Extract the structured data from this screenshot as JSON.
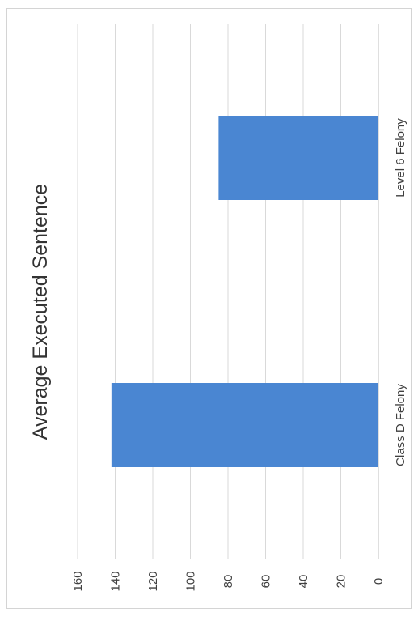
{
  "chart_data": {
    "type": "bar",
    "title": "Average Executed Sentence",
    "categories": [
      "Class D Felony",
      "Level 6 Felony"
    ],
    "series": [
      {
        "values": [
          142,
          85
        ]
      }
    ],
    "ylim": [
      0,
      160
    ],
    "yticks": [
      0,
      20,
      40,
      60,
      80,
      100,
      120,
      140,
      160
    ],
    "xlabel": "",
    "ylabel": "",
    "grid": true,
    "legend": "none",
    "bar_color": "#4a86d2",
    "orientation": "rotated-90-counterclockwise"
  }
}
